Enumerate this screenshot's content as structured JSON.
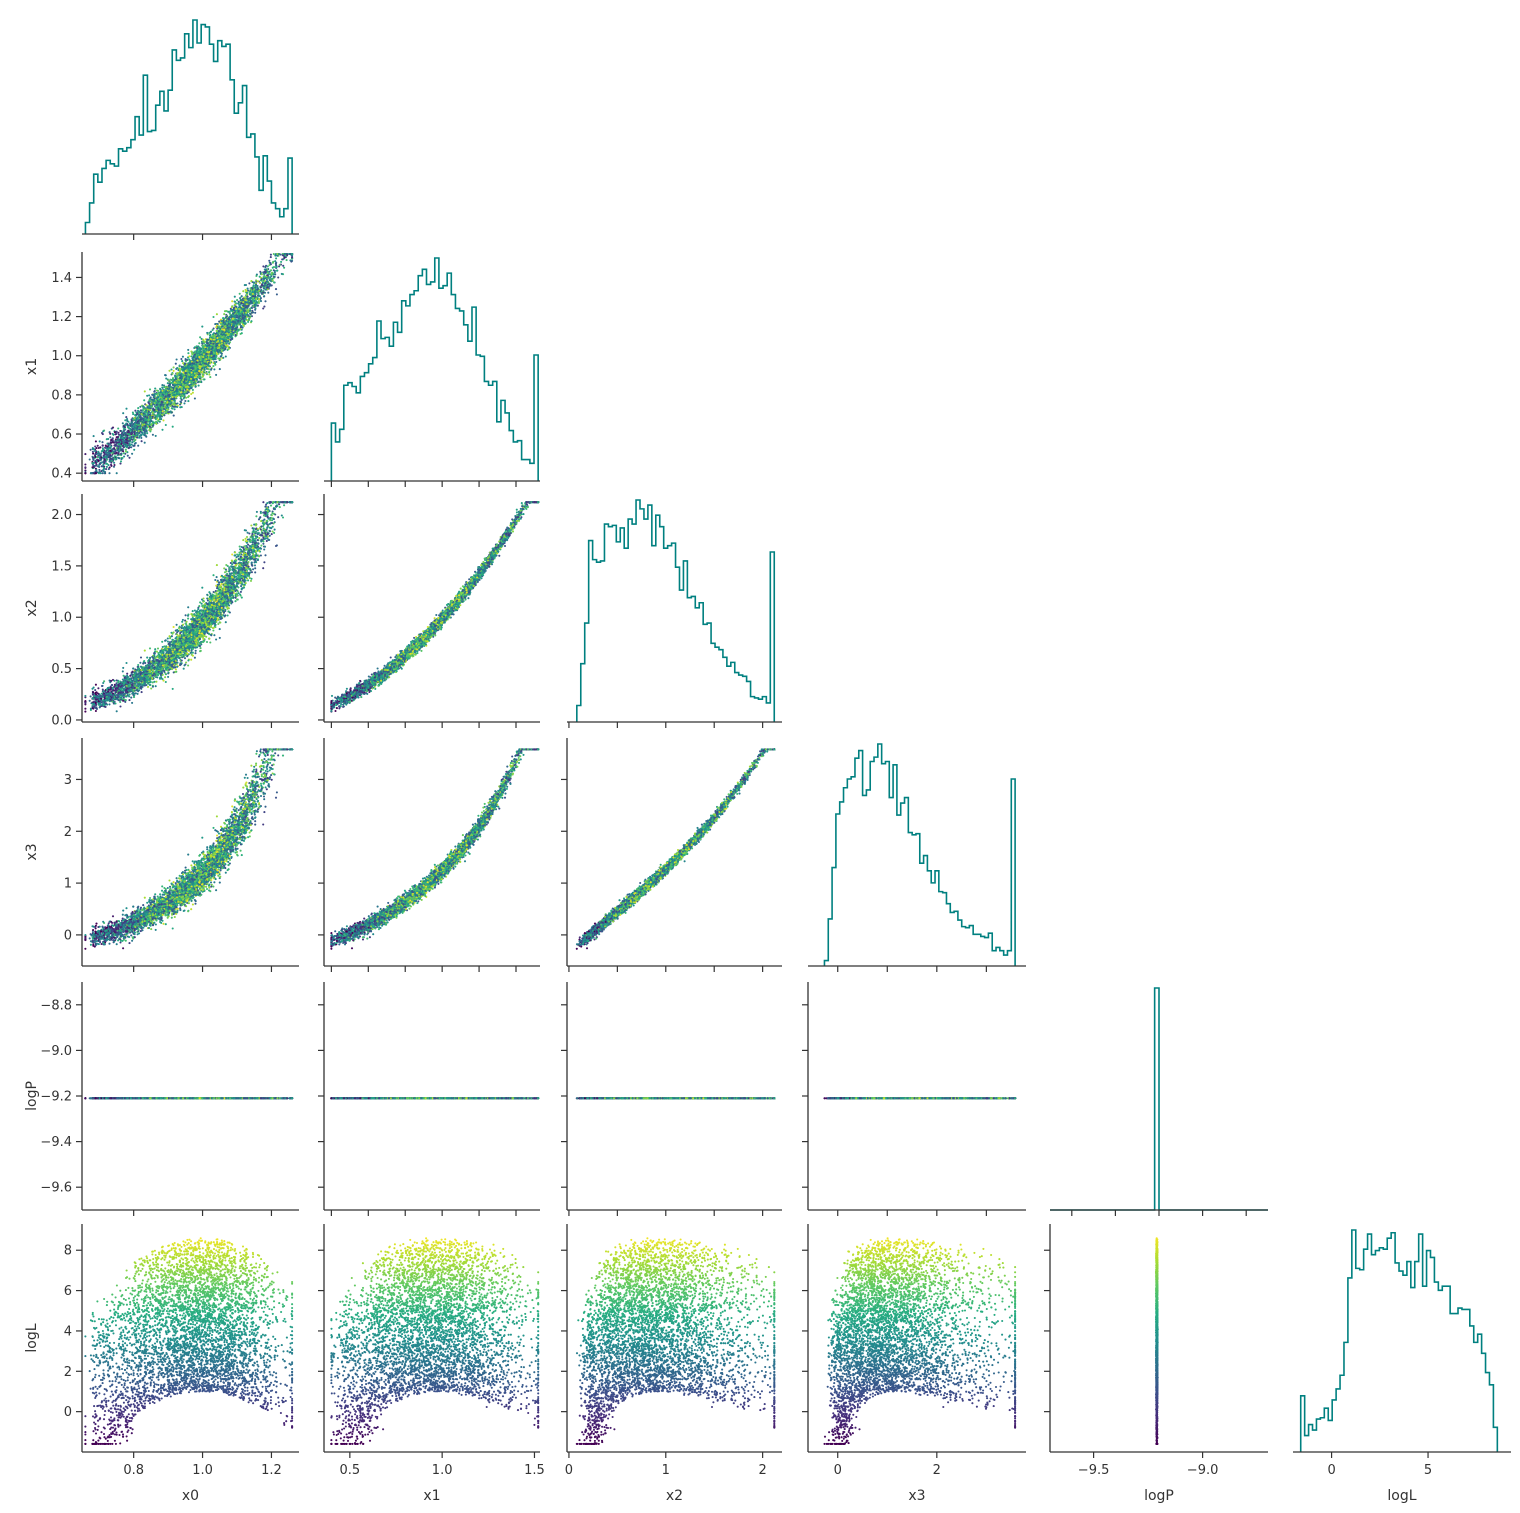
{
  "chart_data": {
    "type": "scatter",
    "layout": "corner-pairplot",
    "variables": [
      "x0",
      "x1",
      "x2",
      "x3",
      "logP",
      "logL"
    ],
    "ranges": {
      "x0": [
        0.65,
        1.28
      ],
      "x1": [
        0.36,
        1.53
      ],
      "x2": [
        -0.02,
        2.2
      ],
      "x3": [
        -0.6,
        3.8
      ],
      "logP": [
        -9.7,
        -8.7
      ],
      "logL": [
        -2.0,
        9.3
      ]
    },
    "ticks": {
      "x0": [
        0.8,
        1.0,
        1.2
      ],
      "x1": [
        0.4,
        0.6,
        0.8,
        1.0,
        1.2,
        1.4
      ],
      "x1_bottom": [
        0.5,
        1.0,
        1.5
      ],
      "x2": [
        0.0,
        0.5,
        1.0,
        1.5,
        2.0
      ],
      "x2_bottom": [
        0,
        1,
        2
      ],
      "x3": [
        0,
        1,
        2,
        3
      ],
      "x3_bottom": [
        0,
        2
      ],
      "logP": [
        -9.6,
        -9.4,
        -9.2,
        -9.0,
        -8.8
      ],
      "logP_bottom": [
        -9.5,
        -9.0
      ],
      "logL": [
        0,
        2,
        4,
        6,
        8
      ],
      "logL_bottom": [
        0,
        5
      ]
    },
    "tick_labels": {
      "x0": [
        "0.8",
        "1.0",
        "1.2"
      ],
      "x1": [
        "0.4",
        "0.6",
        "0.8",
        "1.0",
        "1.2",
        "1.4"
      ],
      "x1_bottom": [
        "0.5",
        "1.0",
        "1.5"
      ],
      "x2": [
        "0.0",
        "0.5",
        "1.0",
        "1.5",
        "2.0"
      ],
      "x2_bottom": [
        "0",
        "1",
        "2"
      ],
      "x3": [
        "0",
        "1",
        "2",
        "3"
      ],
      "x3_bottom": [
        "0",
        "2"
      ],
      "logP": [
        "−9.6",
        "−9.4",
        "−9.2",
        "−9.0",
        "−8.8"
      ],
      "logP_bottom": [
        "−9.5",
        "−9.0"
      ],
      "logL": [
        "0",
        "2",
        "4",
        "6",
        "8"
      ],
      "logL_bottom": [
        "0",
        "5"
      ]
    },
    "constant_logP": -9.21,
    "n_points": 5000,
    "histogram_color": "#008080",
    "colormap": "viridis",
    "color_by": "logL",
    "grid": false
  }
}
